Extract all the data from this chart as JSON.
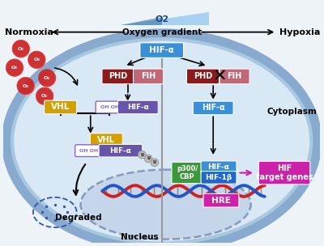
{
  "bg_color": "#eef3f8",
  "cell_bg": "#d8e8f4",
  "cell_border_inner": "#a8c8e0",
  "cell_border_outer": "#88aacf",
  "nucleus_bg": "#c5d5ea",
  "nucleus_border": "#8899bb",
  "divider_color": "#999999",
  "normoxia_label": "Normoxia",
  "hypoxia_label": "Hypoxia",
  "gradient_label": "Oxygen gradient",
  "o2_label": "O2",
  "cytoplasm_label": "Cytoplasm",
  "nucleus_label": "Nucleus",
  "degraded_label": "Degraded",
  "hif_target_label": "HIF\ntarget genes",
  "hre_label": "HRE",
  "vhl_label": "VHL",
  "phd_label": "PHD",
  "fih_label": "FIH",
  "hif_alpha_label": "HIF-α",
  "hif_1b_label": "HIF-1β",
  "p300_label": "p300/\nCBP",
  "oh_label": "OH OH",
  "u_labels": [
    "U",
    "U",
    "U"
  ],
  "colors": {
    "hif_blue": "#3a8fd6",
    "phd_dark": "#8b1a1a",
    "fih_pink": "#c06878",
    "vhl_gold": "#d4a000",
    "hif_alpha_purple": "#6655aa",
    "p300_green": "#3a9a3a",
    "hif_1b_blue": "#2266cc",
    "hre_magenta": "#cc22aa",
    "target_magenta": "#cc22aa",
    "o2_red": "#cc2222",
    "oh_purple": "#8866cc",
    "u_gray": "#aaaaaa",
    "dna_red": "#cc2222",
    "dna_blue": "#2255cc",
    "triangle_light": "#a8d0f0",
    "triangle_dark": "#2060a0"
  }
}
